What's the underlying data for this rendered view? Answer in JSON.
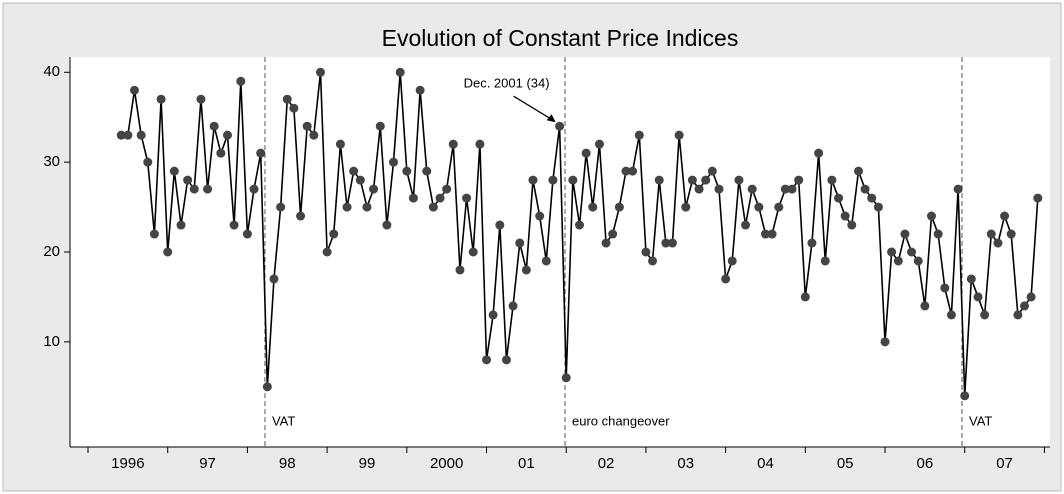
{
  "chart_data": {
    "type": "line",
    "title": "Evolution of Constant Price Indices",
    "series": [
      {
        "color": "#000000",
        "marker_color": "#444444",
        "values": [
          33,
          33,
          38,
          33,
          30,
          22,
          37,
          20,
          29,
          23,
          28,
          27,
          37,
          27,
          34,
          31,
          33,
          23,
          39,
          22,
          27,
          31,
          5,
          17,
          25,
          37,
          36,
          24,
          34,
          33,
          40,
          20,
          22,
          32,
          25,
          29,
          28,
          25,
          27,
          34,
          23,
          30,
          40,
          29,
          26,
          38,
          29,
          25,
          26,
          27,
          32,
          18,
          26,
          20,
          32,
          8,
          13,
          23,
          8,
          14,
          21,
          18,
          28,
          24,
          19,
          28,
          34,
          6,
          28,
          23,
          31,
          25,
          32,
          21,
          22,
          25,
          29,
          29,
          33,
          20,
          19,
          28,
          21,
          21,
          33,
          25,
          28,
          27,
          28,
          29,
          27,
          17,
          19,
          28,
          23,
          27,
          25,
          22,
          22,
          25,
          27,
          27,
          28,
          15,
          21,
          31,
          19,
          28,
          26,
          24,
          23,
          29,
          27,
          26,
          25,
          10,
          20,
          19,
          22,
          20,
          19,
          14,
          24,
          22,
          16,
          13,
          27,
          4,
          17,
          15,
          13,
          22,
          21,
          24,
          22,
          13,
          14,
          15,
          26
        ]
      }
    ],
    "x": [
      1996.417,
      1996.5,
      1996.583,
      1996.667,
      1996.75,
      1996.833,
      1996.917,
      1997,
      1997.083,
      1997.167,
      1997.25,
      1997.333,
      1997.417,
      1997.5,
      1997.583,
      1997.667,
      1997.75,
      1997.833,
      1997.917,
      1998,
      1998.083,
      1998.167,
      1998.25,
      1998.333,
      1998.417,
      1998.5,
      1998.583,
      1998.667,
      1998.75,
      1998.833,
      1998.917,
      1999,
      1999.083,
      1999.167,
      1999.25,
      1999.333,
      1999.417,
      1999.5,
      1999.583,
      1999.667,
      1999.75,
      1999.833,
      1999.917,
      2000,
      2000.083,
      2000.167,
      2000.25,
      2000.333,
      2000.417,
      2000.5,
      2000.583,
      2000.667,
      2000.75,
      2000.833,
      2000.917,
      2001,
      2001.083,
      2001.167,
      2001.25,
      2001.333,
      2001.417,
      2001.5,
      2001.583,
      2001.667,
      2001.75,
      2001.833,
      2001.917,
      2002,
      2002.083,
      2002.167,
      2002.25,
      2002.333,
      2002.417,
      2002.5,
      2002.583,
      2002.667,
      2002.75,
      2002.833,
      2002.917,
      2003,
      2003.083,
      2003.167,
      2003.25,
      2003.333,
      2003.417,
      2003.5,
      2003.583,
      2003.667,
      2003.75,
      2003.833,
      2003.917,
      2004,
      2004.083,
      2004.167,
      2004.25,
      2004.333,
      2004.417,
      2004.5,
      2004.583,
      2004.667,
      2004.75,
      2004.833,
      2004.917,
      2005,
      2005.083,
      2005.167,
      2005.25,
      2005.333,
      2005.417,
      2005.5,
      2005.583,
      2005.667,
      2005.75,
      2005.833,
      2005.917,
      2006,
      2006.083,
      2006.167,
      2006.25,
      2006.333,
      2006.417,
      2006.5,
      2006.583,
      2006.667,
      2006.75,
      2006.833,
      2006.917,
      2007,
      2007.083,
      2007.167,
      2007.25,
      2007.333,
      2007.417,
      2007.5,
      2007.583,
      2007.667,
      2007.75,
      2007.833,
      2007.917
    ],
    "xlim": [
      1995.774,
      2008.07
    ],
    "xticks": [
      1996,
      1997,
      1998,
      1999,
      2000,
      2001,
      2002,
      2003,
      2004,
      2005,
      2006,
      2007,
      2008
    ],
    "year_labels": [
      {
        "value": 1996.5,
        "label": "1996"
      },
      {
        "value": 1997.5,
        "label": "97"
      },
      {
        "value": 1998.5,
        "label": "98"
      },
      {
        "value": 1999.5,
        "label": "99"
      },
      {
        "value": 2000.5,
        "label": "2000"
      },
      {
        "value": 2001.5,
        "label": "01"
      },
      {
        "value": 2002.5,
        "label": "02"
      },
      {
        "value": 2003.5,
        "label": "03"
      },
      {
        "value": 2004.5,
        "label": "04"
      },
      {
        "value": 2005.5,
        "label": "05"
      },
      {
        "value": 2006.5,
        "label": "06"
      },
      {
        "value": 2007.5,
        "label": "07"
      }
    ],
    "ylim": [
      -1.7,
      41.7
    ],
    "yticks": [
      10,
      20,
      30,
      40
    ],
    "events": [
      {
        "x": 1998.22,
        "label": "VAT"
      },
      {
        "x": 2001.985,
        "label": "euro changeover"
      },
      {
        "x": 2006.966,
        "label": "VAT"
      }
    ],
    "annotation": {
      "text": "Dec. 2001 (34)",
      "x": 2001.917,
      "y": 34
    }
  }
}
